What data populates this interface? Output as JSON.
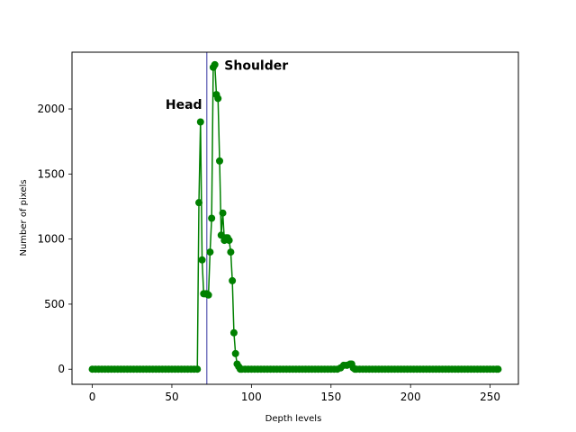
{
  "chart_data": {
    "type": "line",
    "xlabel": "Depth levels",
    "ylabel": "Number of pixels",
    "xlim": [
      -12.75,
      267.75
    ],
    "ylim": [
      -116,
      2436
    ],
    "xticks": [
      0,
      50,
      100,
      150,
      200,
      250
    ],
    "yticks": [
      0,
      500,
      1000,
      1500,
      2000
    ],
    "grid": false,
    "line_color": "#008000",
    "vline": {
      "x": 72,
      "color": "#00008b"
    },
    "annotations": [
      {
        "text": "Head",
        "x": 46,
        "y": 2000
      },
      {
        "text": "Shoulder",
        "x": 83,
        "y": 2300
      }
    ],
    "series": [
      {
        "points": [
          [
            0,
            0
          ],
          [
            2,
            0
          ],
          [
            4,
            0
          ],
          [
            6,
            0
          ],
          [
            8,
            0
          ],
          [
            10,
            0
          ],
          [
            12,
            0
          ],
          [
            14,
            0
          ],
          [
            16,
            0
          ],
          [
            18,
            0
          ],
          [
            20,
            0
          ],
          [
            22,
            0
          ],
          [
            24,
            0
          ],
          [
            26,
            0
          ],
          [
            28,
            0
          ],
          [
            30,
            0
          ],
          [
            32,
            0
          ],
          [
            34,
            0
          ],
          [
            36,
            0
          ],
          [
            38,
            0
          ],
          [
            40,
            0
          ],
          [
            42,
            0
          ],
          [
            44,
            0
          ],
          [
            46,
            0
          ],
          [
            48,
            0
          ],
          [
            50,
            0
          ],
          [
            52,
            0
          ],
          [
            54,
            0
          ],
          [
            56,
            0
          ],
          [
            58,
            0
          ],
          [
            60,
            0
          ],
          [
            62,
            0
          ],
          [
            64,
            0
          ],
          [
            66,
            0
          ],
          [
            67,
            1280
          ],
          [
            68,
            1900
          ],
          [
            69,
            840
          ],
          [
            70,
            580
          ],
          [
            71,
            580
          ],
          [
            72,
            580
          ],
          [
            73,
            570
          ],
          [
            74,
            900
          ],
          [
            75,
            1160
          ],
          [
            76,
            2320
          ],
          [
            77,
            2340
          ],
          [
            78,
            2110
          ],
          [
            79,
            2080
          ],
          [
            80,
            1600
          ],
          [
            81,
            1030
          ],
          [
            82,
            1200
          ],
          [
            83,
            990
          ],
          [
            84,
            1010
          ],
          [
            85,
            1010
          ],
          [
            86,
            990
          ],
          [
            87,
            900
          ],
          [
            88,
            680
          ],
          [
            89,
            280
          ],
          [
            90,
            120
          ],
          [
            91,
            40
          ],
          [
            92,
            20
          ],
          [
            93,
            0
          ],
          [
            94,
            0
          ],
          [
            96,
            0
          ],
          [
            98,
            0
          ],
          [
            100,
            0
          ],
          [
            102,
            0
          ],
          [
            104,
            0
          ],
          [
            106,
            0
          ],
          [
            108,
            0
          ],
          [
            110,
            0
          ],
          [
            112,
            0
          ],
          [
            114,
            0
          ],
          [
            116,
            0
          ],
          [
            118,
            0
          ],
          [
            120,
            0
          ],
          [
            122,
            0
          ],
          [
            124,
            0
          ],
          [
            126,
            0
          ],
          [
            128,
            0
          ],
          [
            130,
            0
          ],
          [
            132,
            0
          ],
          [
            134,
            0
          ],
          [
            136,
            0
          ],
          [
            138,
            0
          ],
          [
            140,
            0
          ],
          [
            142,
            0
          ],
          [
            144,
            0
          ],
          [
            146,
            0
          ],
          [
            148,
            0
          ],
          [
            150,
            0
          ],
          [
            152,
            0
          ],
          [
            154,
            0
          ],
          [
            156,
            10
          ],
          [
            158,
            30
          ],
          [
            160,
            30
          ],
          [
            162,
            40
          ],
          [
            163,
            40
          ],
          [
            164,
            10
          ],
          [
            165,
            0
          ],
          [
            166,
            0
          ],
          [
            168,
            0
          ],
          [
            170,
            0
          ],
          [
            172,
            0
          ],
          [
            174,
            0
          ],
          [
            176,
            0
          ],
          [
            178,
            0
          ],
          [
            180,
            0
          ],
          [
            182,
            0
          ],
          [
            184,
            0
          ],
          [
            186,
            0
          ],
          [
            188,
            0
          ],
          [
            190,
            0
          ],
          [
            192,
            0
          ],
          [
            194,
            0
          ],
          [
            196,
            0
          ],
          [
            198,
            0
          ],
          [
            200,
            0
          ],
          [
            202,
            0
          ],
          [
            204,
            0
          ],
          [
            206,
            0
          ],
          [
            208,
            0
          ],
          [
            210,
            0
          ],
          [
            212,
            0
          ],
          [
            214,
            0
          ],
          [
            216,
            0
          ],
          [
            218,
            0
          ],
          [
            220,
            0
          ],
          [
            222,
            0
          ],
          [
            224,
            0
          ],
          [
            226,
            0
          ],
          [
            228,
            0
          ],
          [
            230,
            0
          ],
          [
            232,
            0
          ],
          [
            234,
            0
          ],
          [
            236,
            0
          ],
          [
            238,
            0
          ],
          [
            240,
            0
          ],
          [
            242,
            0
          ],
          [
            244,
            0
          ],
          [
            246,
            0
          ],
          [
            248,
            0
          ],
          [
            250,
            0
          ],
          [
            252,
            0
          ],
          [
            254,
            0
          ],
          [
            255,
            0
          ]
        ]
      }
    ]
  }
}
